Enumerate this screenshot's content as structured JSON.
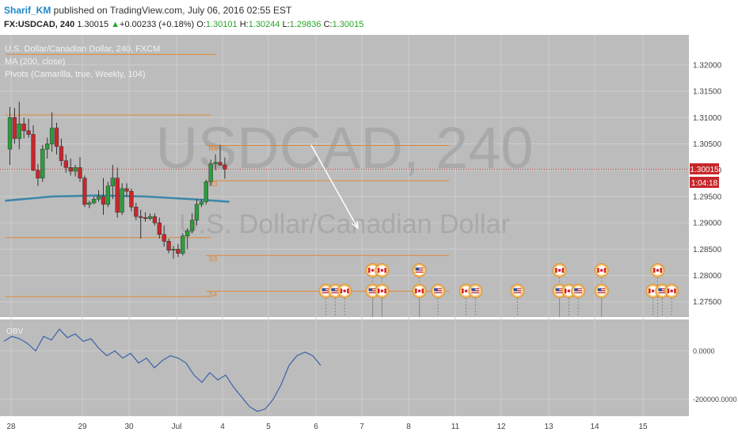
{
  "header": {
    "author": "Sharif_KM",
    "published": " published on TradingView.com, July 06, 2016 02:55 EST",
    "symbol": "FX:USDCAD, 240",
    "last": "1.30015",
    "change": "+0.00233 (+0.18%)",
    "o_label": "O:",
    "o_value": "1.30101",
    "h_label": "H:",
    "h_value": "1.30244",
    "l_label": "L:",
    "l_value": "1.29836",
    "c_label": "C:",
    "c_value": "1.30015"
  },
  "legend": {
    "title": "U.S. Dollar/Canadian Dollar, 240, FXCM",
    "ma": "MA (200, close)",
    "pivots": "Pivots (Camarilla, true, Weekly, 104)"
  },
  "watermark": {
    "line1": "USDCAD, 240",
    "line2": "U.S. Dollar/Canadian Dollar"
  },
  "price_badge": {
    "price": "1.30015",
    "timer": "1:04:18"
  },
  "colors": {
    "panel_bg": "#bcbcbc",
    "grid": "#cdcdcd",
    "up": "#2a9e3c",
    "down": "#c7272b",
    "ma": "#3c86a8",
    "pivot": "#e0873a",
    "obv": "#3a63a8",
    "arrow": "#ffffff",
    "last_price": "#c7272b"
  },
  "chart_data": {
    "type": "candlestick",
    "y_axis": {
      "ticks": [
        "1.32000",
        "1.31500",
        "1.31000",
        "1.30500",
        "1.30000",
        "1.29500",
        "1.29000",
        "1.28500",
        "1.28000",
        "1.27500"
      ],
      "range": [
        1.273,
        1.3245
      ]
    },
    "x_axis": {
      "ticks": [
        "28",
        "29",
        "30",
        "Jul",
        "4",
        "5",
        "6",
        "7",
        "8",
        "11",
        "12",
        "13",
        "14",
        "15"
      ]
    },
    "candles": [
      {
        "o": 1.304,
        "h": 1.312,
        "l": 1.301,
        "c": 1.31
      },
      {
        "o": 1.31,
        "h": 1.3118,
        "l": 1.305,
        "c": 1.306
      },
      {
        "o": 1.306,
        "h": 1.313,
        "l": 1.304,
        "c": 1.3088
      },
      {
        "o": 1.3088,
        "h": 1.31,
        "l": 1.306,
        "c": 1.3075
      },
      {
        "o": 1.3075,
        "h": 1.3098,
        "l": 1.3062,
        "c": 1.3068
      },
      {
        "o": 1.3068,
        "h": 1.3085,
        "l": 1.2998,
        "c": 1.3
      },
      {
        "o": 1.3,
        "h": 1.3012,
        "l": 1.297,
        "c": 1.2985
      },
      {
        "o": 1.2985,
        "h": 1.3048,
        "l": 1.2978,
        "c": 1.304
      },
      {
        "o": 1.304,
        "h": 1.3062,
        "l": 1.3022,
        "c": 1.305
      },
      {
        "o": 1.305,
        "h": 1.311,
        "l": 1.3035,
        "c": 1.308
      },
      {
        "o": 1.308,
        "h": 1.309,
        "l": 1.303,
        "c": 1.3045
      },
      {
        "o": 1.3045,
        "h": 1.306,
        "l": 1.3008,
        "c": 1.3018
      },
      {
        "o": 1.3018,
        "h": 1.303,
        "l": 1.2995,
        "c": 1.3005
      },
      {
        "o": 1.3005,
        "h": 1.3022,
        "l": 1.299,
        "c": 1.2998
      },
      {
        "o": 1.2998,
        "h": 1.301,
        "l": 1.2988,
        "c": 1.3005
      },
      {
        "o": 1.3005,
        "h": 1.3025,
        "l": 1.2978,
        "c": 1.2985
      },
      {
        "o": 1.2985,
        "h": 1.299,
        "l": 1.293,
        "c": 1.2935
      },
      {
        "o": 1.2935,
        "h": 1.2942,
        "l": 1.2928,
        "c": 1.2938
      },
      {
        "o": 1.2938,
        "h": 1.295,
        "l": 1.2935,
        "c": 1.2945
      },
      {
        "o": 1.2945,
        "h": 1.2962,
        "l": 1.294,
        "c": 1.295
      },
      {
        "o": 1.295,
        "h": 1.2985,
        "l": 1.2915,
        "c": 1.2935
      },
      {
        "o": 1.2935,
        "h": 1.2978,
        "l": 1.293,
        "c": 1.297
      },
      {
        "o": 1.297,
        "h": 1.301,
        "l": 1.2945,
        "c": 1.2985
      },
      {
        "o": 1.2985,
        "h": 1.3005,
        "l": 1.291,
        "c": 1.292
      },
      {
        "o": 1.292,
        "h": 1.2975,
        "l": 1.2915,
        "c": 1.2965
      },
      {
        "o": 1.2965,
        "h": 1.2975,
        "l": 1.295,
        "c": 1.296
      },
      {
        "o": 1.296,
        "h": 1.2965,
        "l": 1.2922,
        "c": 1.293
      },
      {
        "o": 1.293,
        "h": 1.2938,
        "l": 1.2905,
        "c": 1.2912
      },
      {
        "o": 1.2912,
        "h": 1.2925,
        "l": 1.287,
        "c": 1.291
      },
      {
        "o": 1.291,
        "h": 1.292,
        "l": 1.2902,
        "c": 1.2908
      },
      {
        "o": 1.2908,
        "h": 1.2918,
        "l": 1.2905,
        "c": 1.2912
      },
      {
        "o": 1.2912,
        "h": 1.2918,
        "l": 1.2895,
        "c": 1.29
      },
      {
        "o": 1.29,
        "h": 1.291,
        "l": 1.287,
        "c": 1.2878
      },
      {
        "o": 1.2878,
        "h": 1.2895,
        "l": 1.2855,
        "c": 1.2865
      },
      {
        "o": 1.2865,
        "h": 1.287,
        "l": 1.2842,
        "c": 1.2848
      },
      {
        "o": 1.2848,
        "h": 1.2856,
        "l": 1.2832,
        "c": 1.285
      },
      {
        "o": 1.285,
        "h": 1.286,
        "l": 1.2835,
        "c": 1.2842
      },
      {
        "o": 1.2842,
        "h": 1.288,
        "l": 1.2838,
        "c": 1.2875
      },
      {
        "o": 1.2875,
        "h": 1.289,
        "l": 1.285,
        "c": 1.2885
      },
      {
        "o": 1.2885,
        "h": 1.2918,
        "l": 1.288,
        "c": 1.2905
      },
      {
        "o": 1.2905,
        "h": 1.2945,
        "l": 1.2895,
        "c": 1.2935
      },
      {
        "o": 1.2935,
        "h": 1.2945,
        "l": 1.293,
        "c": 1.294
      },
      {
        "o": 1.294,
        "h": 1.2982,
        "l": 1.2935,
        "c": 1.2978
      },
      {
        "o": 1.2978,
        "h": 1.302,
        "l": 1.297,
        "c": 1.3012
      },
      {
        "o": 1.3012,
        "h": 1.303,
        "l": 1.3,
        "c": 1.3015
      },
      {
        "o": 1.3015,
        "h": 1.3048,
        "l": 1.3008,
        "c": 1.301
      },
      {
        "o": 1.301,
        "h": 1.3024,
        "l": 1.2984,
        "c": 1.3002
      }
    ],
    "ma": [
      {
        "i": 0,
        "v": 1.2942
      },
      {
        "i": 10,
        "v": 1.295
      },
      {
        "i": 20,
        "v": 1.2952
      },
      {
        "i": 30,
        "v": 1.295
      },
      {
        "i": 40,
        "v": 1.2945
      },
      {
        "i": 48,
        "v": 1.294
      }
    ],
    "pivots": [
      {
        "label": "",
        "value": 1.322,
        "from": 0,
        "to": 44
      },
      {
        "label": "",
        "value": 1.3105,
        "from": 0,
        "to": 43
      },
      {
        "label": "R4",
        "value": 1.3047,
        "from": 43,
        "to": 94
      },
      {
        "label": "R3",
        "value": 1.298,
        "from": 43,
        "to": 94
      },
      {
        "label": "",
        "value": 1.2872,
        "from": 0,
        "to": 43
      },
      {
        "label": "S3",
        "value": 1.2838,
        "from": 43,
        "to": 94
      },
      {
        "label": "",
        "value": 1.276,
        "from": 0,
        "to": 43
      },
      {
        "label": "S4",
        "value": 1.277,
        "from": 43,
        "to": 94
      }
    ],
    "last_price": 1.30015,
    "projection": {
      "from": {
        "i": 66,
        "v": 1.3048
      },
      "to": {
        "i": 76,
        "v": 1.289
      }
    },
    "events": [
      {
        "i": 69,
        "flag": "US",
        "row": 1
      },
      {
        "i": 71,
        "flag": "US",
        "row": 1
      },
      {
        "i": 73,
        "flag": "CA",
        "row": 1
      },
      {
        "i": 79,
        "flag": "CA",
        "row": 2
      },
      {
        "i": 81,
        "flag": "CA",
        "row": 2
      },
      {
        "i": 79,
        "flag": "US",
        "row": 1
      },
      {
        "i": 81,
        "flag": "CA",
        "row": 1
      },
      {
        "i": 89,
        "flag": "US",
        "row": 2
      },
      {
        "i": 89,
        "flag": "CA",
        "row": 1
      },
      {
        "i": 93,
        "flag": "US",
        "row": 1
      },
      {
        "i": 99,
        "flag": "CA",
        "row": 1
      },
      {
        "i": 101,
        "flag": "US",
        "row": 1
      },
      {
        "i": 110,
        "flag": "US",
        "row": 1
      },
      {
        "i": 119,
        "flag": "CA",
        "row": 2
      },
      {
        "i": 119,
        "flag": "US",
        "row": 1
      },
      {
        "i": 121,
        "flag": "CA",
        "row": 1
      },
      {
        "i": 123,
        "flag": "US",
        "row": 1
      },
      {
        "i": 128,
        "flag": "CA",
        "row": 2
      },
      {
        "i": 128,
        "flag": "US",
        "row": 1
      },
      {
        "i": 140,
        "flag": "CA",
        "row": 2
      },
      {
        "i": 139,
        "flag": "CA",
        "row": 1
      },
      {
        "i": 141,
        "flag": "US",
        "row": 1
      },
      {
        "i": 143,
        "flag": "CA",
        "row": 1
      }
    ],
    "obv": {
      "label": "OBV",
      "ticks": [
        "0.0000",
        "-200000.0000"
      ],
      "range": [
        -260000,
        120000
      ],
      "points": [
        40000,
        60000,
        50000,
        30000,
        0,
        60000,
        45000,
        90000,
        55000,
        70000,
        40000,
        50000,
        10000,
        -20000,
        0,
        -30000,
        -10000,
        -50000,
        -30000,
        -70000,
        -40000,
        -20000,
        -30000,
        -50000,
        -100000,
        -130000,
        -90000,
        -120000,
        -100000,
        -150000,
        -190000,
        -230000,
        -250000,
        -240000,
        -200000,
        -140000,
        -60000,
        -20000,
        -5000,
        -20000,
        -60000
      ]
    }
  }
}
